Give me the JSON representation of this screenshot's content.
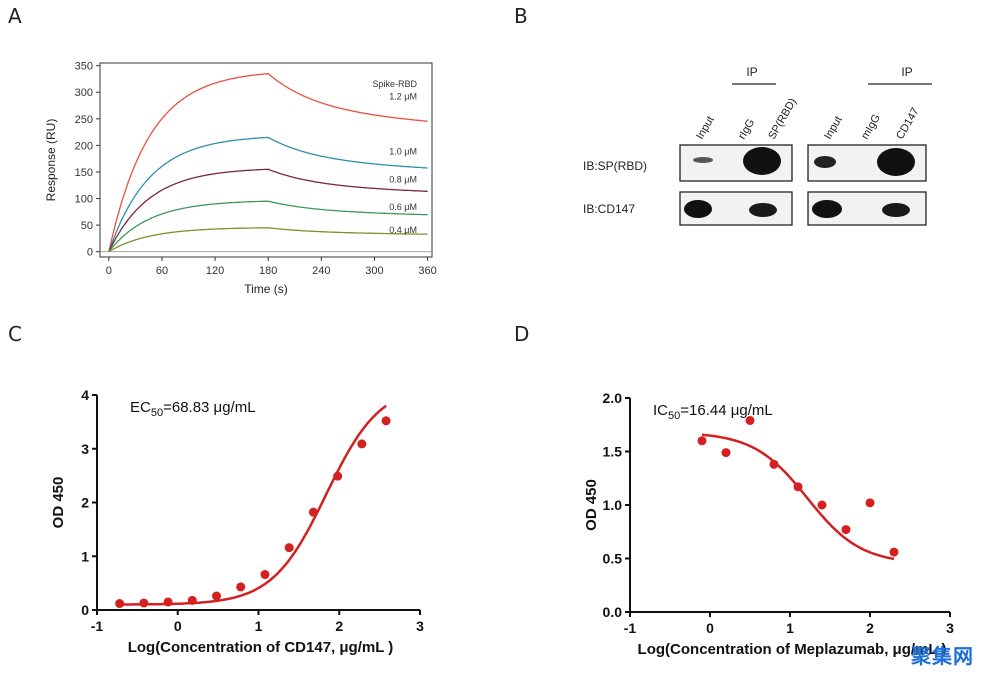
{
  "panels": {
    "A": "A",
    "B": "B",
    "C": "C",
    "D": "D"
  },
  "chart_data": [
    {
      "panel": "A",
      "type": "line",
      "title": "",
      "xlabel": "Time (s)",
      "ylabel": "Response (RU)",
      "xlim": [
        -10,
        365
      ],
      "ylim": [
        -10,
        355
      ],
      "xticks": [
        0,
        60,
        120,
        180,
        240,
        300,
        360
      ],
      "yticks": [
        0,
        50,
        100,
        150,
        200,
        250,
        300,
        350
      ],
      "legend_title": "Spike-RBD",
      "association_end": 180,
      "series": [
        {
          "name": "1.2 μM",
          "color": "#e8513f",
          "rmax": 335,
          "kobs": 0.022,
          "kd": 0.0045,
          "plateau_frac": 0.78
        },
        {
          "name": "1.0 μM",
          "color": "#2f8fae",
          "rmax": 215,
          "kobs": 0.022,
          "kd": 0.0045,
          "plateau_frac": 0.78
        },
        {
          "name": "0.8 μM",
          "color": "#7a2a3a",
          "rmax": 155,
          "kobs": 0.022,
          "kd": 0.0045,
          "plateau_frac": 0.78
        },
        {
          "name": "0.6 μM",
          "color": "#3f9a5a",
          "rmax": 95,
          "kobs": 0.022,
          "kd": 0.0045,
          "plateau_frac": 0.78
        },
        {
          "name": "0.4 μM",
          "color": "#8a8a2e",
          "rmax": 45,
          "kobs": 0.022,
          "kd": 0.0045,
          "plateau_frac": 0.78
        }
      ]
    },
    {
      "panel": "C",
      "type": "scatter",
      "annotation_prefix": "EC",
      "annotation_sub": "50",
      "annotation_value": "=68.83 μg/mL",
      "xlabel": "Log(Concentration of CD147, μg/mL )",
      "ylabel": "OD 450",
      "xlim": [
        -1,
        3
      ],
      "ylim": [
        0,
        4
      ],
      "xticks": [
        -1,
        0,
        1,
        2,
        3
      ],
      "yticks": [
        0,
        1,
        2,
        3,
        4
      ],
      "x": [
        -0.72,
        -0.42,
        -0.12,
        0.18,
        0.48,
        0.78,
        1.08,
        1.38,
        1.68,
        1.98,
        2.28,
        2.58
      ],
      "y": [
        0.12,
        0.13,
        0.15,
        0.18,
        0.26,
        0.43,
        0.66,
        1.16,
        1.82,
        2.49,
        3.09,
        3.52
      ],
      "fit": {
        "bottom": 0.1,
        "top": 4.2,
        "log_ec50": 1.838,
        "hill": 1.3
      },
      "color": "#d42020"
    },
    {
      "panel": "D",
      "type": "scatter",
      "annotation_prefix": "IC",
      "annotation_sub": "50",
      "annotation_value": "=16.44 μg/mL",
      "xlabel": "Log(Concentration of Meplazumab, μg/mL )",
      "ylabel": "OD 450",
      "xlim": [
        -1,
        3
      ],
      "ylim": [
        0,
        2
      ],
      "xticks": [
        -1,
        0,
        1,
        2,
        3
      ],
      "yticks": [
        "0.0",
        "0.5",
        "1.0",
        "1.5",
        "2.0"
      ],
      "x": [
        -0.1,
        0.2,
        0.5,
        0.8,
        1.1,
        1.4,
        1.7,
        2.0,
        2.3
      ],
      "y": [
        1.6,
        1.49,
        1.79,
        1.38,
        1.17,
        1.0,
        0.77,
        1.02,
        0.56
      ],
      "fit": {
        "bottom": 0.45,
        "top": 1.68,
        "log_ic50": 1.216,
        "hill": 1.3,
        "x_from": -0.1,
        "x_to": 2.3
      },
      "color": "#d42020"
    }
  ],
  "blot": {
    "ip_label_left": "IP",
    "ip_label_right": "IP",
    "lanes_left": [
      "Input",
      "rIgG",
      "SP(RBD)"
    ],
    "lanes_right": [
      "Input",
      "mIgG",
      "CD147"
    ],
    "rows": [
      "IB:SP(RBD)",
      "IB:CD147"
    ]
  },
  "watermark": "聚集网"
}
